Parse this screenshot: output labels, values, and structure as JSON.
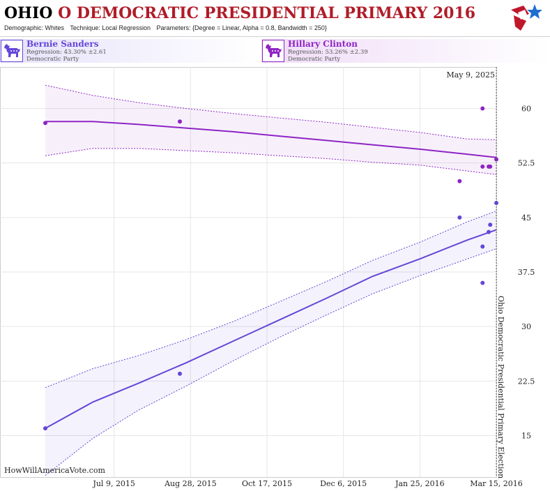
{
  "header": {
    "state": "OHIO",
    "rest": " O DEMOCRATIC PRESIDENTIAL PRIMARY 2016",
    "demographic": "Demographic: Whites",
    "technique": "Technique: Local Regression",
    "parameters": "Parameters: {Degree = Linear, Alpha = 0.8, Bandwidth = 250}"
  },
  "candidates": [
    {
      "name": "Bernie Sanders",
      "regression": "Regression: 43.30% ±2.61",
      "party": "Democratic Party",
      "color": "#6546d8",
      "icon": "donkey-icon"
    },
    {
      "name": "Hillary Clinton",
      "regression": "Regression: 53.26% ±2.39",
      "party": "Democratic Party",
      "color": "#8e24c4",
      "icon": "donkey-icon"
    }
  ],
  "watermark": "HowWillAmericaVote.com",
  "current_date_label": "May 9, 2025",
  "election_label": "Ohio Democratic Presidential Primary Election",
  "chart_data": {
    "type": "scatter",
    "title": "OHIO O DEMOCRATIC PRESIDENTIAL PRIMARY 2016",
    "x_range": [
      "2015-05-25",
      "2016-03-15"
    ],
    "ylim": [
      10,
      65
    ],
    "x_ticks": [
      "Jul 9, 2015",
      "Aug 28, 2015",
      "Oct 17, 2015",
      "Dec 6, 2015",
      "Jan 25, 2016",
      "Mar 15, 2016"
    ],
    "x_tick_dates": [
      "2015-07-09",
      "2015-08-28",
      "2015-10-17",
      "2015-12-06",
      "2016-01-25",
      "2016-03-15"
    ],
    "y_ticks": [
      15,
      22.5,
      30,
      37.5,
      45,
      52.5,
      60
    ],
    "y_tick_labels": [
      "15",
      "22.5",
      "30",
      "37.5",
      "45",
      "52.5",
      "60"
    ],
    "grid": true,
    "series": [
      {
        "name": "Bernie Sanders",
        "color": "#6546d8",
        "points": [
          {
            "x": "2015-05-25",
            "y": 16
          },
          {
            "x": "2015-08-21",
            "y": 23.5
          },
          {
            "x": "2016-02-20",
            "y": 45
          },
          {
            "x": "2016-03-06",
            "y": 36
          },
          {
            "x": "2016-03-06",
            "y": 41
          },
          {
            "x": "2016-03-10",
            "y": 43
          },
          {
            "x": "2016-03-11",
            "y": 44
          },
          {
            "x": "2016-03-15",
            "y": 47
          }
        ],
        "trend": {
          "x": [
            "2015-05-25",
            "2015-06-25",
            "2015-07-25",
            "2015-08-25",
            "2015-09-25",
            "2015-10-25",
            "2015-11-25",
            "2015-12-25",
            "2016-01-25",
            "2016-02-25",
            "2016-03-15"
          ],
          "y": [
            16,
            19.6,
            22.2,
            25.0,
            28.0,
            30.9,
            33.9,
            36.9,
            39.3,
            41.9,
            43.3
          ],
          "lower": [
            9.5,
            14.6,
            18.5,
            21.8,
            25.3,
            28.5,
            31.6,
            34.5,
            37.0,
            39.3,
            40.7
          ],
          "upper": [
            21.6,
            24.2,
            26.0,
            28.2,
            30.7,
            33.4,
            36.2,
            39.1,
            41.6,
            44.4,
            45.9
          ]
        }
      },
      {
        "name": "Hillary Clinton",
        "color": "#8e24c4",
        "points": [
          {
            "x": "2015-05-25",
            "y": 58
          },
          {
            "x": "2015-08-21",
            "y": 58.2
          },
          {
            "x": "2016-02-20",
            "y": 50
          },
          {
            "x": "2016-03-06",
            "y": 60
          },
          {
            "x": "2016-03-06",
            "y": 52
          },
          {
            "x": "2016-03-10",
            "y": 52
          },
          {
            "x": "2016-03-11",
            "y": 52
          },
          {
            "x": "2016-03-15",
            "y": 53
          }
        ],
        "trend": {
          "x": [
            "2015-05-25",
            "2015-06-25",
            "2015-07-25",
            "2015-08-25",
            "2015-09-25",
            "2015-10-25",
            "2015-11-25",
            "2015-12-25",
            "2016-01-25",
            "2016-02-25",
            "2016-03-15"
          ],
          "y": [
            58.2,
            58.2,
            57.8,
            57.3,
            56.8,
            56.2,
            55.6,
            55.0,
            54.4,
            53.7,
            53.26
          ],
          "lower": [
            53.5,
            54.5,
            54.5,
            54.2,
            53.9,
            53.5,
            53.1,
            52.6,
            52.2,
            51.4,
            50.9
          ],
          "upper": [
            63.2,
            61.8,
            60.8,
            60.0,
            59.3,
            58.7,
            58.1,
            57.4,
            56.7,
            55.8,
            55.7
          ]
        }
      }
    ]
  }
}
